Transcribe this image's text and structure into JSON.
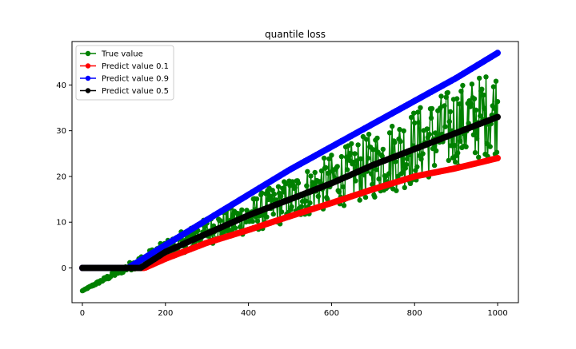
{
  "chart_data": {
    "type": "line",
    "title": "quantile loss",
    "xlabel": "",
    "ylabel": "",
    "xlim": [
      -25,
      1050
    ],
    "ylim": [
      -7.6,
      49.5
    ],
    "xticks": [
      0,
      200,
      400,
      600,
      800,
      1000
    ],
    "yticks": [
      0,
      10,
      20,
      30,
      40
    ],
    "grid": false,
    "legend_position": "top-left",
    "series": [
      {
        "name": "True value",
        "color": "#008000",
        "kind": "noisy",
        "description_points": {
          "x": [
            0,
            100,
            200,
            300,
            400,
            500,
            600,
            700,
            800,
            900,
            1000
          ],
          "y_center": [
            -5,
            -0.5,
            4.5,
            8,
            11,
            14.5,
            18.5,
            22,
            26,
            30,
            33
          ],
          "y_min": [
            -5,
            -1,
            2,
            5,
            7.5,
            10,
            13,
            15,
            18,
            22,
            25
          ],
          "y_max": [
            -5,
            0.5,
            6,
            11,
            15,
            20,
            25,
            30,
            35,
            40,
            44
          ]
        }
      },
      {
        "name": "Predict value 0.1",
        "color": "#ff0000",
        "x": [
          0,
          100,
          150,
          200,
          300,
          400,
          500,
          600,
          700,
          800,
          900,
          1000
        ],
        "y": [
          0,
          0,
          0,
          2,
          5.5,
          8.3,
          11.3,
          14.2,
          17.2,
          20,
          21.8,
          24
        ]
      },
      {
        "name": "Predict value 0.9",
        "color": "#0000ff",
        "x": [
          0,
          100,
          110,
          200,
          300,
          400,
          500,
          600,
          700,
          800,
          900,
          1000
        ],
        "y": [
          0,
          0,
          0,
          5,
          10.5,
          16,
          21.5,
          26.5,
          31.5,
          36.5,
          41.5,
          47
        ]
      },
      {
        "name": "Predict value 0.5",
        "color": "#000000",
        "x": [
          0,
          100,
          140,
          200,
          300,
          400,
          500,
          600,
          700,
          800,
          900,
          1000
        ],
        "y": [
          0,
          0,
          0,
          3.5,
          7.5,
          11.5,
          15,
          18.5,
          22.5,
          26,
          29.5,
          33
        ]
      }
    ]
  }
}
